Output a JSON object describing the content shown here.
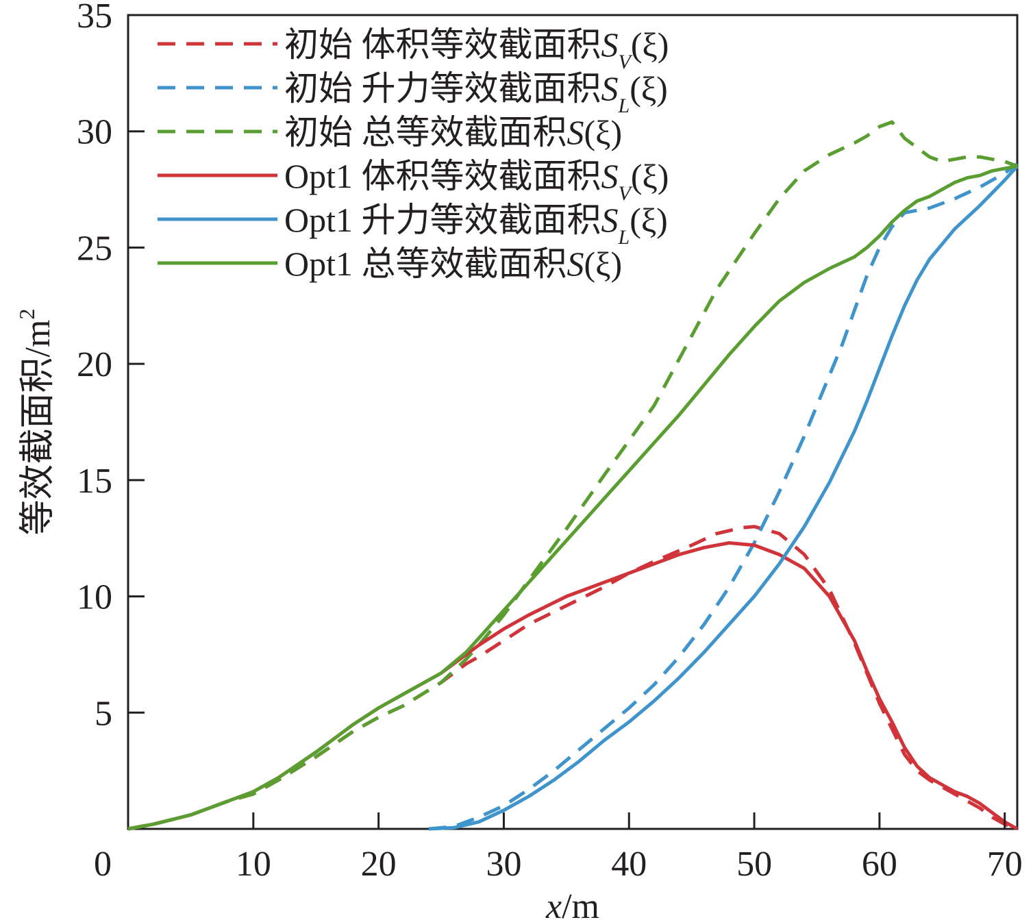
{
  "chart_data": {
    "type": "line",
    "title": "",
    "xlabel": "x/m",
    "xlabel_var": "x",
    "xlabel_unit": "/m",
    "ylabel": "等效截面积/m²",
    "ylabel_main": "等效截面积/m",
    "ylabel_sup": "2",
    "xlim": [
      0,
      71
    ],
    "ylim": [
      0,
      35
    ],
    "x_ticks": [
      0,
      10,
      20,
      30,
      40,
      50,
      60,
      70
    ],
    "x_tick_labels": [
      "0",
      "10",
      "20",
      "30",
      "40",
      "50",
      "60",
      "70"
    ],
    "y_ticks": [
      5,
      10,
      15,
      20,
      25,
      30,
      35
    ],
    "y_tick_labels": [
      "5",
      "10",
      "15",
      "20",
      "25",
      "30",
      "35"
    ],
    "grid": false,
    "legend_position": "top-left",
    "series": [
      {
        "name": "初始 体积等效截面积S_V(ξ)",
        "legend_prefix": "初始 体积等效截面积",
        "legend_symbol": "S",
        "legend_sub": "V",
        "legend_suffix": "(ξ)",
        "color": "#d0343a",
        "style": "dashed",
        "x": [
          0,
          2,
          5,
          8,
          10,
          12,
          15,
          18,
          20,
          22,
          25,
          27,
          28,
          30,
          32,
          35,
          38,
          40,
          42,
          45,
          47,
          49,
          50,
          52,
          54,
          56,
          58,
          59,
          60,
          61,
          62,
          63,
          64,
          65,
          66,
          67,
          68,
          69,
          70,
          71
        ],
        "y": [
          0,
          0.2,
          0.6,
          1.2,
          1.5,
          2.1,
          3.1,
          4.2,
          4.8,
          5.3,
          6.3,
          7.1,
          7.4,
          8.1,
          8.8,
          9.6,
          10.4,
          11.0,
          11.5,
          12.2,
          12.7,
          12.95,
          13.0,
          12.7,
          11.8,
          10.3,
          8.0,
          6.7,
          5.4,
          4.3,
          3.2,
          2.5,
          2.1,
          1.8,
          1.5,
          1.2,
          0.9,
          0.5,
          0.2,
          0
        ]
      },
      {
        "name": "初始 升力等效截面积S_L(ξ)",
        "legend_prefix": "初始 升力等效截面积",
        "legend_symbol": "S",
        "legend_sub": "L",
        "legend_suffix": "(ξ)",
        "color": "#3e94cb",
        "style": "dashed",
        "x": [
          24,
          26,
          28,
          30,
          32,
          34,
          36,
          38,
          40,
          42,
          44,
          46,
          48,
          50,
          52,
          54,
          56,
          57,
          58,
          59,
          60,
          61,
          62,
          64,
          66,
          68,
          70,
          71
        ],
        "y": [
          0,
          0.1,
          0.5,
          1.0,
          1.7,
          2.5,
          3.4,
          4.3,
          5.2,
          6.2,
          7.4,
          8.8,
          10.4,
          12.3,
          14.5,
          16.9,
          19.5,
          20.8,
          22.3,
          23.8,
          25.0,
          25.9,
          26.5,
          26.7,
          27.1,
          27.6,
          28.2,
          28.6
        ]
      },
      {
        "name": "初始 总等效截面积S(ξ)",
        "legend_prefix": "初始 总等效截面积",
        "legend_symbol": "S",
        "legend_sub": "",
        "legend_suffix": "(ξ)",
        "color": "#5a9e32",
        "style": "dashed",
        "x": [
          0,
          2,
          5,
          8,
          10,
          12,
          15,
          18,
          20,
          22,
          25,
          27,
          28,
          30,
          32,
          35,
          38,
          40,
          42,
          45,
          47,
          49,
          50,
          52,
          54,
          56,
          58,
          59,
          60,
          61,
          62,
          63,
          64,
          65,
          66,
          67,
          68,
          69,
          70,
          71
        ],
        "y": [
          0,
          0.2,
          0.6,
          1.2,
          1.5,
          2.1,
          3.1,
          4.2,
          4.8,
          5.3,
          6.3,
          7.3,
          7.9,
          9.2,
          10.7,
          12.9,
          15.2,
          16.7,
          18.2,
          21.2,
          23.2,
          24.8,
          25.6,
          27.1,
          28.3,
          29.0,
          29.5,
          29.8,
          30.2,
          30.4,
          29.7,
          29.3,
          28.9,
          28.7,
          28.8,
          28.9,
          28.9,
          28.8,
          28.7,
          28.5
        ]
      },
      {
        "name": "Opt1 体积等效截面积S_V(ξ)",
        "legend_prefix": "Opt1 体积等效截面积",
        "legend_symbol": "S",
        "legend_sub": "V",
        "legend_suffix": "(ξ)",
        "color": "#d0343a",
        "style": "solid",
        "x": [
          0,
          2,
          5,
          8,
          10,
          12,
          15,
          18,
          20,
          22,
          25,
          27,
          28,
          30,
          32,
          35,
          38,
          40,
          42,
          44,
          46,
          48,
          50,
          52,
          54,
          56,
          58,
          59,
          60,
          61,
          62,
          63,
          64,
          65,
          66,
          67,
          68,
          69,
          70,
          71
        ],
        "y": [
          0,
          0.2,
          0.6,
          1.2,
          1.6,
          2.2,
          3.3,
          4.5,
          5.2,
          5.8,
          6.7,
          7.5,
          7.9,
          8.6,
          9.2,
          10.0,
          10.6,
          11.0,
          11.4,
          11.8,
          12.1,
          12.3,
          12.2,
          11.8,
          11.2,
          10.0,
          8.1,
          6.8,
          5.6,
          4.6,
          3.5,
          2.7,
          2.2,
          1.9,
          1.6,
          1.4,
          1.1,
          0.7,
          0.3,
          0
        ]
      },
      {
        "name": "Opt1 升力等效截面积S_L(ξ)",
        "legend_prefix": "Opt1 升力等效截面积",
        "legend_symbol": "S",
        "legend_sub": "L",
        "legend_suffix": "(ξ)",
        "color": "#3e94cb",
        "style": "solid",
        "x": [
          24,
          26,
          28,
          30,
          32,
          34,
          36,
          38,
          40,
          42,
          44,
          46,
          48,
          50,
          52,
          54,
          56,
          58,
          59,
          60,
          61,
          62,
          63,
          64,
          66,
          68,
          70,
          71
        ],
        "y": [
          0,
          0.05,
          0.3,
          0.8,
          1.4,
          2.1,
          2.9,
          3.8,
          4.6,
          5.5,
          6.5,
          7.6,
          8.8,
          10.0,
          11.4,
          13.0,
          14.9,
          17.1,
          18.4,
          19.8,
          21.2,
          22.5,
          23.6,
          24.5,
          25.8,
          26.8,
          27.9,
          28.5
        ]
      },
      {
        "name": "Opt1 总等效截面积S(ξ)",
        "legend_prefix": "Opt1 总等效截面积",
        "legend_symbol": "S",
        "legend_sub": "",
        "legend_suffix": "(ξ)",
        "color": "#5a9e32",
        "style": "solid",
        "x": [
          0,
          2,
          5,
          8,
          10,
          12,
          15,
          18,
          20,
          22,
          25,
          27,
          28,
          30,
          32,
          35,
          38,
          40,
          42,
          44,
          46,
          48,
          50,
          52,
          54,
          56,
          58,
          59,
          60,
          61,
          62,
          63,
          64,
          65,
          66,
          67,
          68,
          69,
          70,
          71
        ],
        "y": [
          0,
          0.2,
          0.6,
          1.2,
          1.6,
          2.2,
          3.3,
          4.5,
          5.2,
          5.8,
          6.7,
          7.6,
          8.2,
          9.4,
          10.6,
          12.4,
          14.2,
          15.4,
          16.6,
          17.8,
          19.1,
          20.4,
          21.6,
          22.7,
          23.5,
          24.1,
          24.6,
          25.0,
          25.5,
          26.1,
          26.6,
          27.0,
          27.2,
          27.5,
          27.8,
          28.0,
          28.1,
          28.3,
          28.4,
          28.5
        ]
      }
    ]
  }
}
